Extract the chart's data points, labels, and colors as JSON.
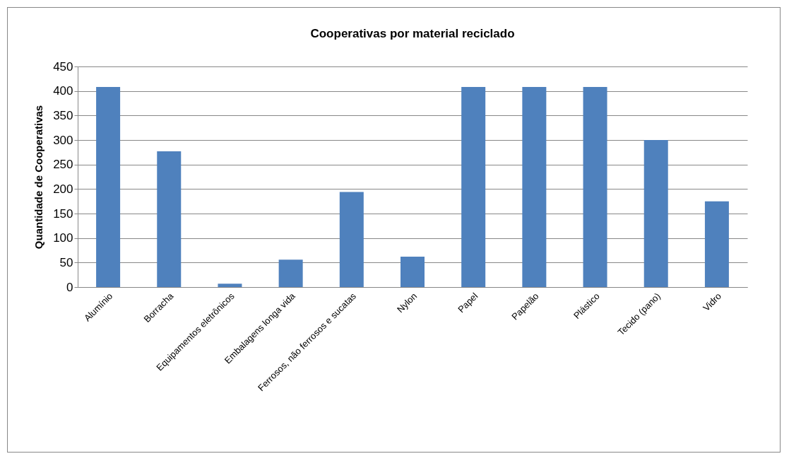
{
  "chart_data": {
    "type": "bar",
    "title": "Cooperativas por material reciclado",
    "ylabel": "Quantidade de Cooperativas",
    "categories": [
      "Alumínio",
      "Borracha",
      "Equipamentos eletrônicos",
      "Embalagens longa vida",
      "Ferrosos, não ferrosos e sucatas",
      "Nylon",
      "Papel",
      "Papelão",
      "Plástico",
      "Tecido (pano)",
      "Vidro"
    ],
    "values": [
      408,
      277,
      7,
      56,
      194,
      62,
      408,
      408,
      408,
      300,
      175
    ],
    "color": "#4f81bd",
    "ylim": [
      0,
      450
    ],
    "yticks": [
      0,
      50,
      100,
      150,
      200,
      250,
      300,
      350,
      400,
      450
    ],
    "grid": "y"
  }
}
